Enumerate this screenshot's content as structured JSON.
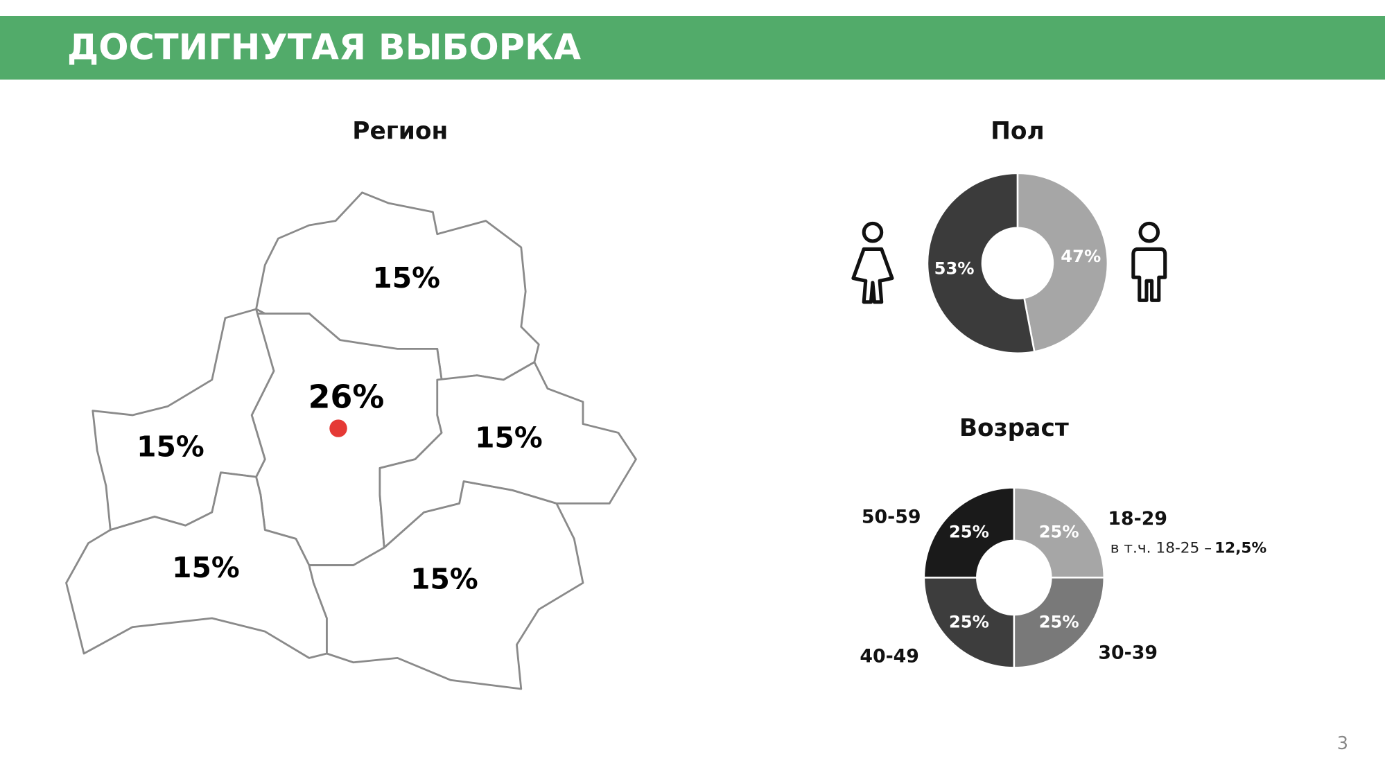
{
  "header": {
    "title": "ДОСТИГНУТАЯ ВЫБОРКА"
  },
  "page_number": "3",
  "map": {
    "title": "Регион",
    "regions": [
      "15%",
      "26%",
      "15%",
      "15%",
      "15%",
      "15%"
    ]
  },
  "chart_data": [
    {
      "type": "donut",
      "title": "Пол",
      "values": [
        47,
        53
      ],
      "value_labels": [
        "47%",
        "53%"
      ],
      "colors": [
        "#a6a6a6",
        "#3b3b3b"
      ]
    },
    {
      "type": "donut",
      "title": "Возраст",
      "categories": [
        "18-29",
        "30-39",
        "40-49",
        "50-59"
      ],
      "values": [
        25,
        25,
        25,
        25
      ],
      "value_labels": [
        "25%",
        "25%",
        "25%",
        "25%"
      ],
      "colors": [
        "#a6a6a6",
        "#797979",
        "#3d3d3d",
        "#1a1a1a"
      ],
      "annotation": {
        "text": "в т.ч. 18-25 –",
        "value": "12,5%"
      }
    }
  ]
}
